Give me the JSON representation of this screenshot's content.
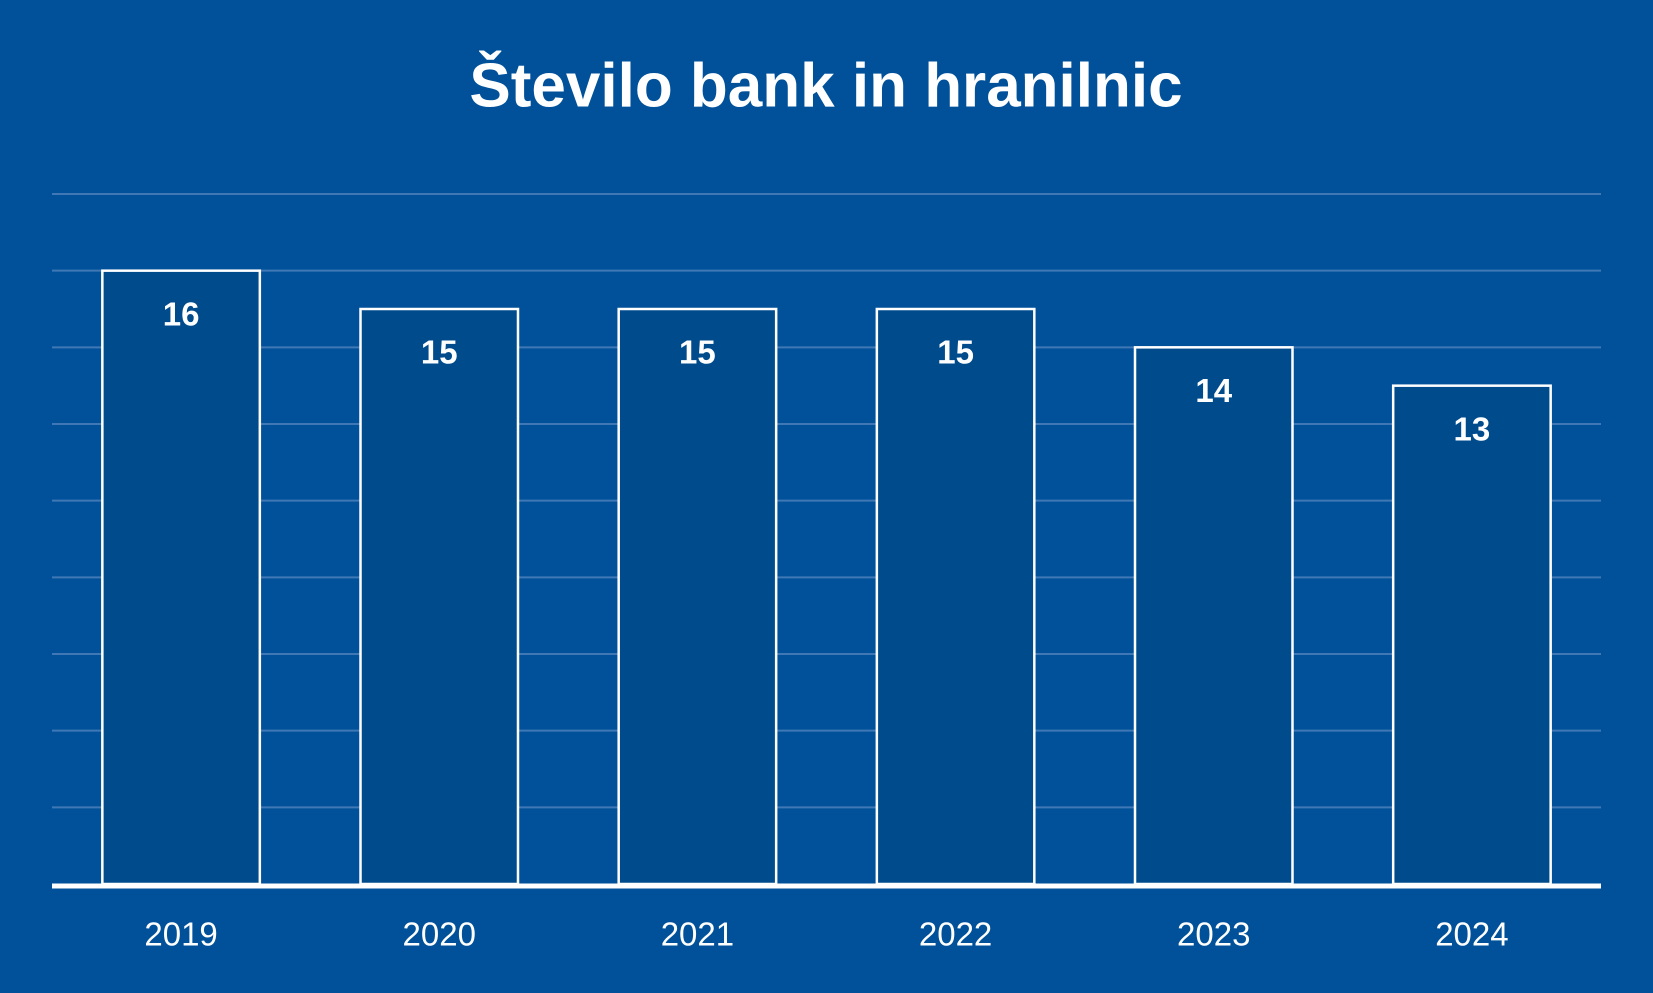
{
  "chart_data": {
    "type": "bar",
    "title": "Število bank in hranilnic",
    "categories": [
      "2019",
      "2020",
      "2021",
      "2022",
      "2023",
      "2024"
    ],
    "values": [
      16,
      15,
      15,
      15,
      14,
      13
    ],
    "color": "#004b8c",
    "ylim": [
      0,
      18
    ],
    "yticks": [
      0,
      2,
      4,
      6,
      8,
      10,
      12,
      14,
      16,
      18
    ],
    "grid": true
  }
}
